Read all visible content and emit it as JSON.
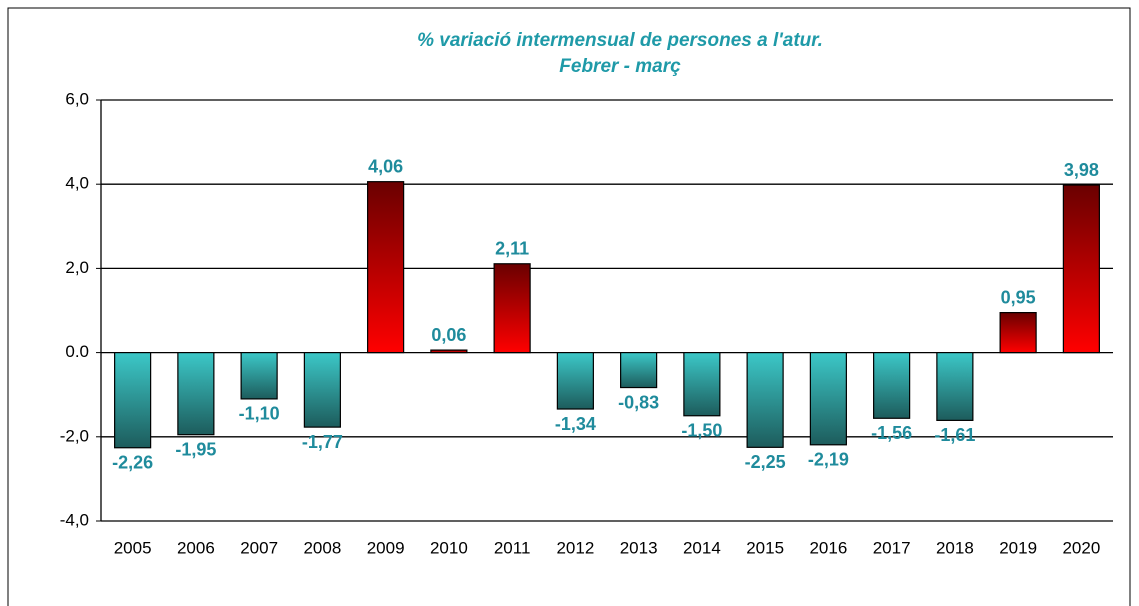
{
  "chart_data": {
    "type": "bar",
    "title": "% variació intermensual  de persones  a l'atur.",
    "subtitle": "Febrer - març",
    "categories": [
      "2005",
      "2006",
      "2007",
      "2008",
      "2009",
      "2010",
      "2011",
      "2012",
      "2013",
      "2014",
      "2015",
      "2016",
      "2017",
      "2018",
      "2019",
      "2020"
    ],
    "values": [
      -2.26,
      -1.95,
      -1.1,
      -1.77,
      4.06,
      0.06,
      2.11,
      -1.34,
      -0.83,
      -1.5,
      -2.25,
      -2.19,
      -1.56,
      -1.61,
      0.95,
      3.98
    ],
    "value_labels": [
      "-2,26",
      "-1,95",
      "-1,10",
      "-1,77",
      "4,06",
      "0,06",
      "2,11",
      "-1,34",
      "-0,83",
      "-1,50",
      "-2,25",
      "-2,19",
      "-1,56",
      "-1,61",
      "0,95",
      "3,98"
    ],
    "positive_color": "#ff0000",
    "negative_color": "#3cc8c8",
    "ylim": [
      -4,
      6
    ],
    "yticks": [
      {
        "value": -4,
        "label": "-4,0"
      },
      {
        "value": -2,
        "label": "-2,0"
      },
      {
        "value": 0,
        "label": "0.0"
      },
      {
        "value": 2,
        "label": "2,0"
      },
      {
        "value": 4,
        "label": "4,0"
      },
      {
        "value": 6,
        "label": "6,0"
      }
    ],
    "grid": true
  }
}
